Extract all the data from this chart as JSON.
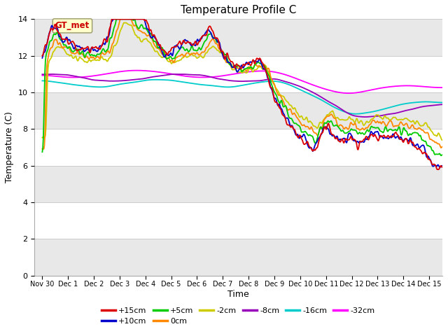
{
  "title": "Temperature Profile C",
  "xlabel": "Time",
  "ylabel": "Temperature (C)",
  "xlim": [
    -0.3,
    15.5
  ],
  "ylim": [
    0,
    14
  ],
  "yticks": [
    0,
    2,
    4,
    6,
    8,
    10,
    12,
    14
  ],
  "xtick_labels": [
    "Nov 30",
    "Dec 1",
    "Dec 2",
    "Dec 3",
    "Dec 4",
    "Dec 5",
    "Dec 6",
    "Dec 7",
    "Dec 8",
    "Dec 9",
    "Dec 10",
    "Dec 11",
    "Dec 12",
    "Dec 13",
    "Dec 14",
    "Dec 15"
  ],
  "xtick_positions": [
    0,
    1,
    2,
    3,
    4,
    5,
    6,
    7,
    8,
    9,
    10,
    11,
    12,
    13,
    14,
    15
  ],
  "annotation_text": "GT_met",
  "series_colors": {
    "+15cm": "#dd0000",
    "+10cm": "#0000cc",
    "+5cm": "#00cc00",
    "0cm": "#ff8800",
    "-2cm": "#cccc00",
    "-8cm": "#9900bb",
    "-16cm": "#00cccc",
    "-32cm": "#ff00ff"
  },
  "legend_order": [
    "+15cm",
    "+10cm",
    "+5cm",
    "0cm",
    "-2cm",
    "-8cm",
    "-16cm",
    "-32cm"
  ],
  "background_color": "#ffffff",
  "band_color": "#e8e8e8",
  "grid_color": "#cccccc"
}
